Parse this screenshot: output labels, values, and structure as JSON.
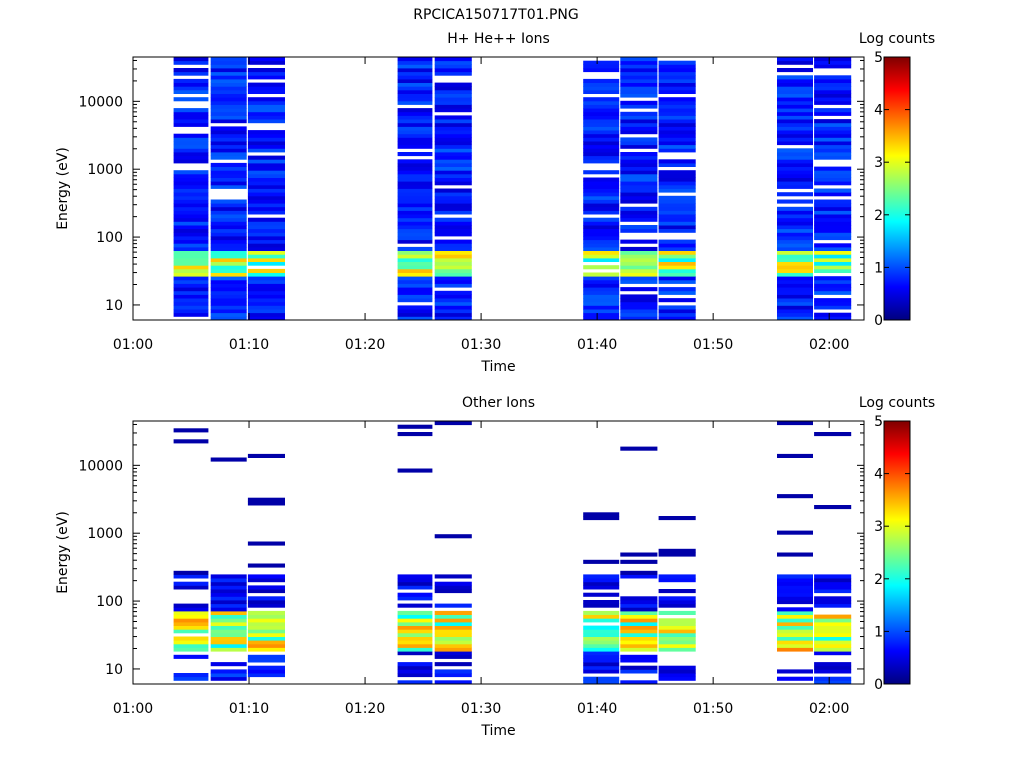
{
  "figure_title": "RPCICA150717T01.PNG",
  "chart_data": [
    {
      "type": "heatmap",
      "title": "H+ He++ Ions",
      "xlabel": "Time",
      "ylabel": "Energy (eV)",
      "x_ticks": [
        "01:00",
        "01:10",
        "01:20",
        "01:30",
        "01:40",
        "01:50",
        "02:00"
      ],
      "xlim_minutes": [
        0,
        63
      ],
      "y_scale": "log",
      "ylim": [
        6,
        45000
      ],
      "y_ticks": [
        10,
        100,
        1000,
        10000
      ],
      "y_tick_labels": [
        "10",
        "100",
        "1000",
        "10000"
      ],
      "colorbar": {
        "label": "Log counts",
        "range": [
          0,
          5
        ],
        "ticks": [
          "0",
          "1",
          "2",
          "3",
          "4",
          "5"
        ]
      },
      "columns_minutes": [
        [
          3.5,
          6.5
        ],
        [
          6.7,
          9.8
        ],
        [
          9.9,
          13.1
        ],
        [
          22.8,
          25.8
        ],
        [
          26,
          29.2
        ],
        [
          38.8,
          41.9
        ],
        [
          42,
          45.2
        ],
        [
          45.3,
          48.5
        ],
        [
          55.5,
          58.6
        ],
        [
          58.7,
          61.9
        ]
      ]
    },
    {
      "type": "heatmap",
      "title": "Other Ions",
      "xlabel": "Time",
      "ylabel": "Energy (eV)",
      "x_ticks": [
        "01:00",
        "01:10",
        "01:20",
        "01:30",
        "01:40",
        "01:50",
        "02:00"
      ],
      "xlim_minutes": [
        0,
        63
      ],
      "y_scale": "log",
      "ylim": [
        6,
        45000
      ],
      "y_ticks": [
        10,
        100,
        1000,
        10000
      ],
      "y_tick_labels": [
        "10",
        "100",
        "1000",
        "10000"
      ],
      "colorbar": {
        "label": "Log counts",
        "range": [
          0,
          5
        ],
        "ticks": [
          "0",
          "1",
          "2",
          "3",
          "4",
          "5"
        ]
      },
      "columns_minutes": [
        [
          3.5,
          6.5
        ],
        [
          6.7,
          9.8
        ],
        [
          9.9,
          13.1
        ],
        [
          22.8,
          25.8
        ],
        [
          26,
          29.2
        ],
        [
          38.8,
          41.9
        ],
        [
          42,
          45.2
        ],
        [
          45.3,
          48.5
        ],
        [
          55.5,
          58.6
        ],
        [
          58.7,
          61.9
        ]
      ]
    }
  ]
}
